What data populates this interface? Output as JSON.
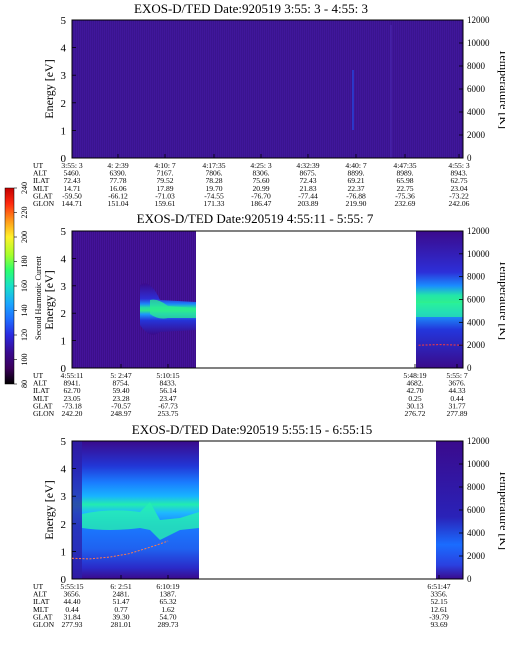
{
  "colorbar": {
    "label": "Second Harmonic Current",
    "ticks": [
      "240",
      "220",
      "200",
      "180",
      "160",
      "140",
      "120",
      "100",
      "80"
    ],
    "stops": [
      "#000000",
      "#3b005a",
      "#3a0a8f",
      "#2a2ae0",
      "#1f6dff",
      "#1aa6ff",
      "#18e0c8",
      "#2cff6e",
      "#a8ff2a",
      "#fff12a",
      "#ff9c1a",
      "#ff2a10",
      "#c40000"
    ]
  },
  "panels": [
    {
      "title": "EXOS-D/TED   Date:920519  3:55: 3 - 4:55: 3",
      "ylabel": "Energy [eV]",
      "y2label": "Temperature [K]",
      "yticks": [
        "5",
        "4",
        "3",
        "2",
        "1",
        "0"
      ],
      "y2ticks": [
        "12000",
        "10000",
        "8000",
        "6000",
        "4000",
        "2000",
        "0"
      ],
      "eph_labels": [
        "UT",
        "ALT",
        "ILAT",
        "MLT",
        "GLAT",
        "GLON"
      ],
      "eph_cols": [
        [
          "3:55: 3",
          "5460.",
          "72.43",
          "14.71",
          "-59.50",
          "144.71"
        ],
        [
          "4: 2:39",
          "6390.",
          "77.78",
          "16.06",
          "-66.12",
          "151.04"
        ],
        [
          "4:10: 7",
          "7167.",
          "79.52",
          "17.89",
          "-71.03",
          "159.61"
        ],
        [
          "4:17:35",
          "7806.",
          "78.28",
          "19.70",
          "-74.55",
          "171.33"
        ],
        [
          "4:25: 3",
          "8306.",
          "75.60",
          "20.99",
          "-76.70",
          "186.47"
        ],
        [
          "4:32:39",
          "8675.",
          "72.43",
          "21.83",
          "-77.44",
          "203.89"
        ],
        [
          "4:40: 7",
          "8899.",
          "69.21",
          "22.37",
          "-76.88",
          "219.90"
        ],
        [
          "4:47:35",
          "8989.",
          "65.98",
          "22.75",
          "-75.36",
          "232.69"
        ],
        [
          "4:55: 3",
          "8943.",
          "62.75",
          "23.04",
          "-73.22",
          "242.06"
        ]
      ]
    },
    {
      "title": "EXOS-D/TED   Date:920519  4:55:11 - 5:55: 7",
      "ylabel": "Energy [eV]",
      "y2label": "Temperature [K]",
      "yticks": [
        "5",
        "4",
        "3",
        "2",
        "1",
        "0"
      ],
      "y2ticks": [
        "12000",
        "10000",
        "8000",
        "6000",
        "4000",
        "2000",
        "0"
      ],
      "eph_labels": [
        "UT",
        "ALT",
        "ILAT",
        "MLT",
        "GLAT",
        "GLON"
      ],
      "eph_cols": [
        [
          "4:55:11",
          "8941.",
          "62.70",
          "23.05",
          "-73.18",
          "242.20"
        ],
        [
          "5: 2:47",
          "8754.",
          "59.40",
          "23.28",
          "-70.57",
          "248.97"
        ],
        [
          "5:10:15",
          "8433.",
          "56.14",
          "23.47",
          "-67.73",
          "253.75"
        ],
        [
          "5:48:19",
          "4682.",
          "42.70",
          "0.25",
          "30.13",
          "276.72"
        ],
        [
          "5:55: 7",
          "3676.",
          "44.33",
          "0.44",
          "31.77",
          "277.89"
        ]
      ]
    },
    {
      "title": "EXOS-D/TED   Date:920519  5:55:15 - 6:55:15",
      "ylabel": "Energy [eV]",
      "y2label": "Temperature [K]",
      "yticks": [
        "5",
        "4",
        "3",
        "2",
        "1",
        "0"
      ],
      "y2ticks": [
        "12000",
        "10000",
        "8000",
        "6000",
        "4000",
        "2000",
        "0"
      ],
      "eph_labels": [
        "UT",
        "ALT",
        "ILAT",
        "MLT",
        "GLAT",
        "GLON"
      ],
      "eph_cols": [
        [
          "5:55:15",
          "3656.",
          "44.40",
          "0.44",
          "31.84",
          "277.93"
        ],
        [
          "6: 2:51",
          "2481.",
          "51.47",
          "0.77",
          "39.30",
          "281.01"
        ],
        [
          "6:10:19",
          "1387.",
          "65.32",
          "1.62",
          "54.70",
          "289.73"
        ],
        [
          "6:51:47",
          "3356.",
          "52.15",
          "12.61",
          "-39.79",
          "93.69"
        ]
      ]
    }
  ],
  "chart_data": [
    {
      "type": "heatmap",
      "title": "EXOS-D/TED   Date:920519  3:55: 3 - 4:55: 3",
      "xlabel": "UT",
      "ylabel": "Energy [eV]",
      "y2label": "Temperature [K]",
      "xlim": [
        "3:55: 3",
        "4:55: 3"
      ],
      "ylim": [
        0,
        5
      ],
      "y2lim": [
        0,
        12000
      ],
      "data_segments": [
        [
          "3:55: 3",
          "4:55: 3"
        ]
      ],
      "dominant_level": 90
    },
    {
      "type": "heatmap",
      "title": "EXOS-D/TED   Date:920519  4:55:11 - 5:55: 7",
      "xlabel": "UT",
      "ylabel": "Energy [eV]",
      "y2label": "Temperature [K]",
      "xlim": [
        "4:55:11",
        "5:55: 7"
      ],
      "ylim": [
        0,
        5
      ],
      "y2lim": [
        0,
        12000
      ],
      "data_segments": [
        [
          "4:55:11",
          "5:12:40"
        ],
        [
          "5:48:19",
          "5:55: 7"
        ]
      ],
      "temperature_series": [
        {
          "x": "5:48:19",
          "y": 2000
        },
        {
          "x": "5:51:30",
          "y": 2050
        },
        {
          "x": "5:55: 7",
          "y": 2000
        }
      ]
    },
    {
      "type": "heatmap",
      "title": "EXOS-D/TED   Date:920519  5:55:15 - 6:55:15",
      "xlabel": "UT",
      "ylabel": "Energy [eV]",
      "y2label": "Temperature [K]",
      "xlim": [
        "5:55:15",
        "6:55:15"
      ],
      "ylim": [
        0,
        5
      ],
      "y2lim": [
        0,
        12000
      ],
      "data_segments": [
        [
          "5:55:15",
          "6:12:20"
        ],
        [
          "6:52:30",
          "6:55:15"
        ]
      ],
      "temperature_series": [
        {
          "x": "5:55:15",
          "y": 1800
        },
        {
          "x": "5:58:00",
          "y": 1750
        },
        {
          "x": "6:01:00",
          "y": 1900
        },
        {
          "x": "6:04:00",
          "y": 2200
        },
        {
          "x": "6:06:00",
          "y": 2550
        },
        {
          "x": "6:08:00",
          "y": 2900
        },
        {
          "x": "6:10:00",
          "y": 3300
        }
      ]
    }
  ]
}
